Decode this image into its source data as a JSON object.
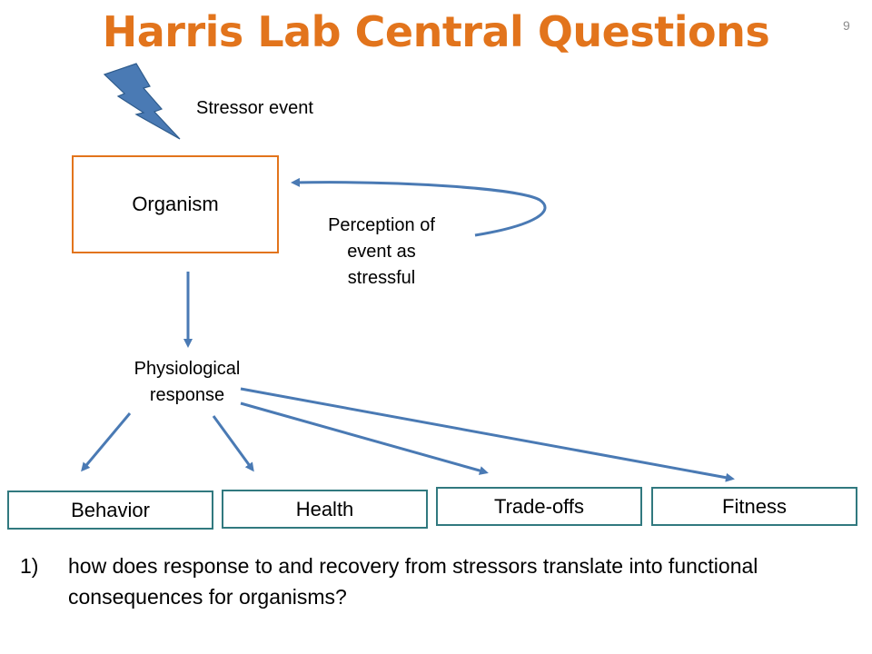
{
  "slide": {
    "title": "Harris Lab Central Questions",
    "number": "9"
  },
  "diagram": {
    "stressor_label": "Stressor event",
    "organism_label": "Organism",
    "perception_lines": [
      "Perception of",
      "event as",
      "stressful"
    ],
    "physiological_lines": [
      "Physiological",
      "response"
    ],
    "outcomes": [
      "Behavior",
      "Health",
      "Trade-offs",
      "Fitness"
    ],
    "colors": {
      "title": "#e2741c",
      "organism_border": "#e2741c",
      "outcome_border": "#31797f",
      "arrow": "#4a7ab4",
      "bolt_fill": "#4a7ab4"
    },
    "icons": {
      "stressor": "lightning-bolt-icon"
    }
  },
  "question": {
    "number": "1)",
    "text": "how does response to and recovery from stressors translate into functional consequences for organisms?"
  }
}
